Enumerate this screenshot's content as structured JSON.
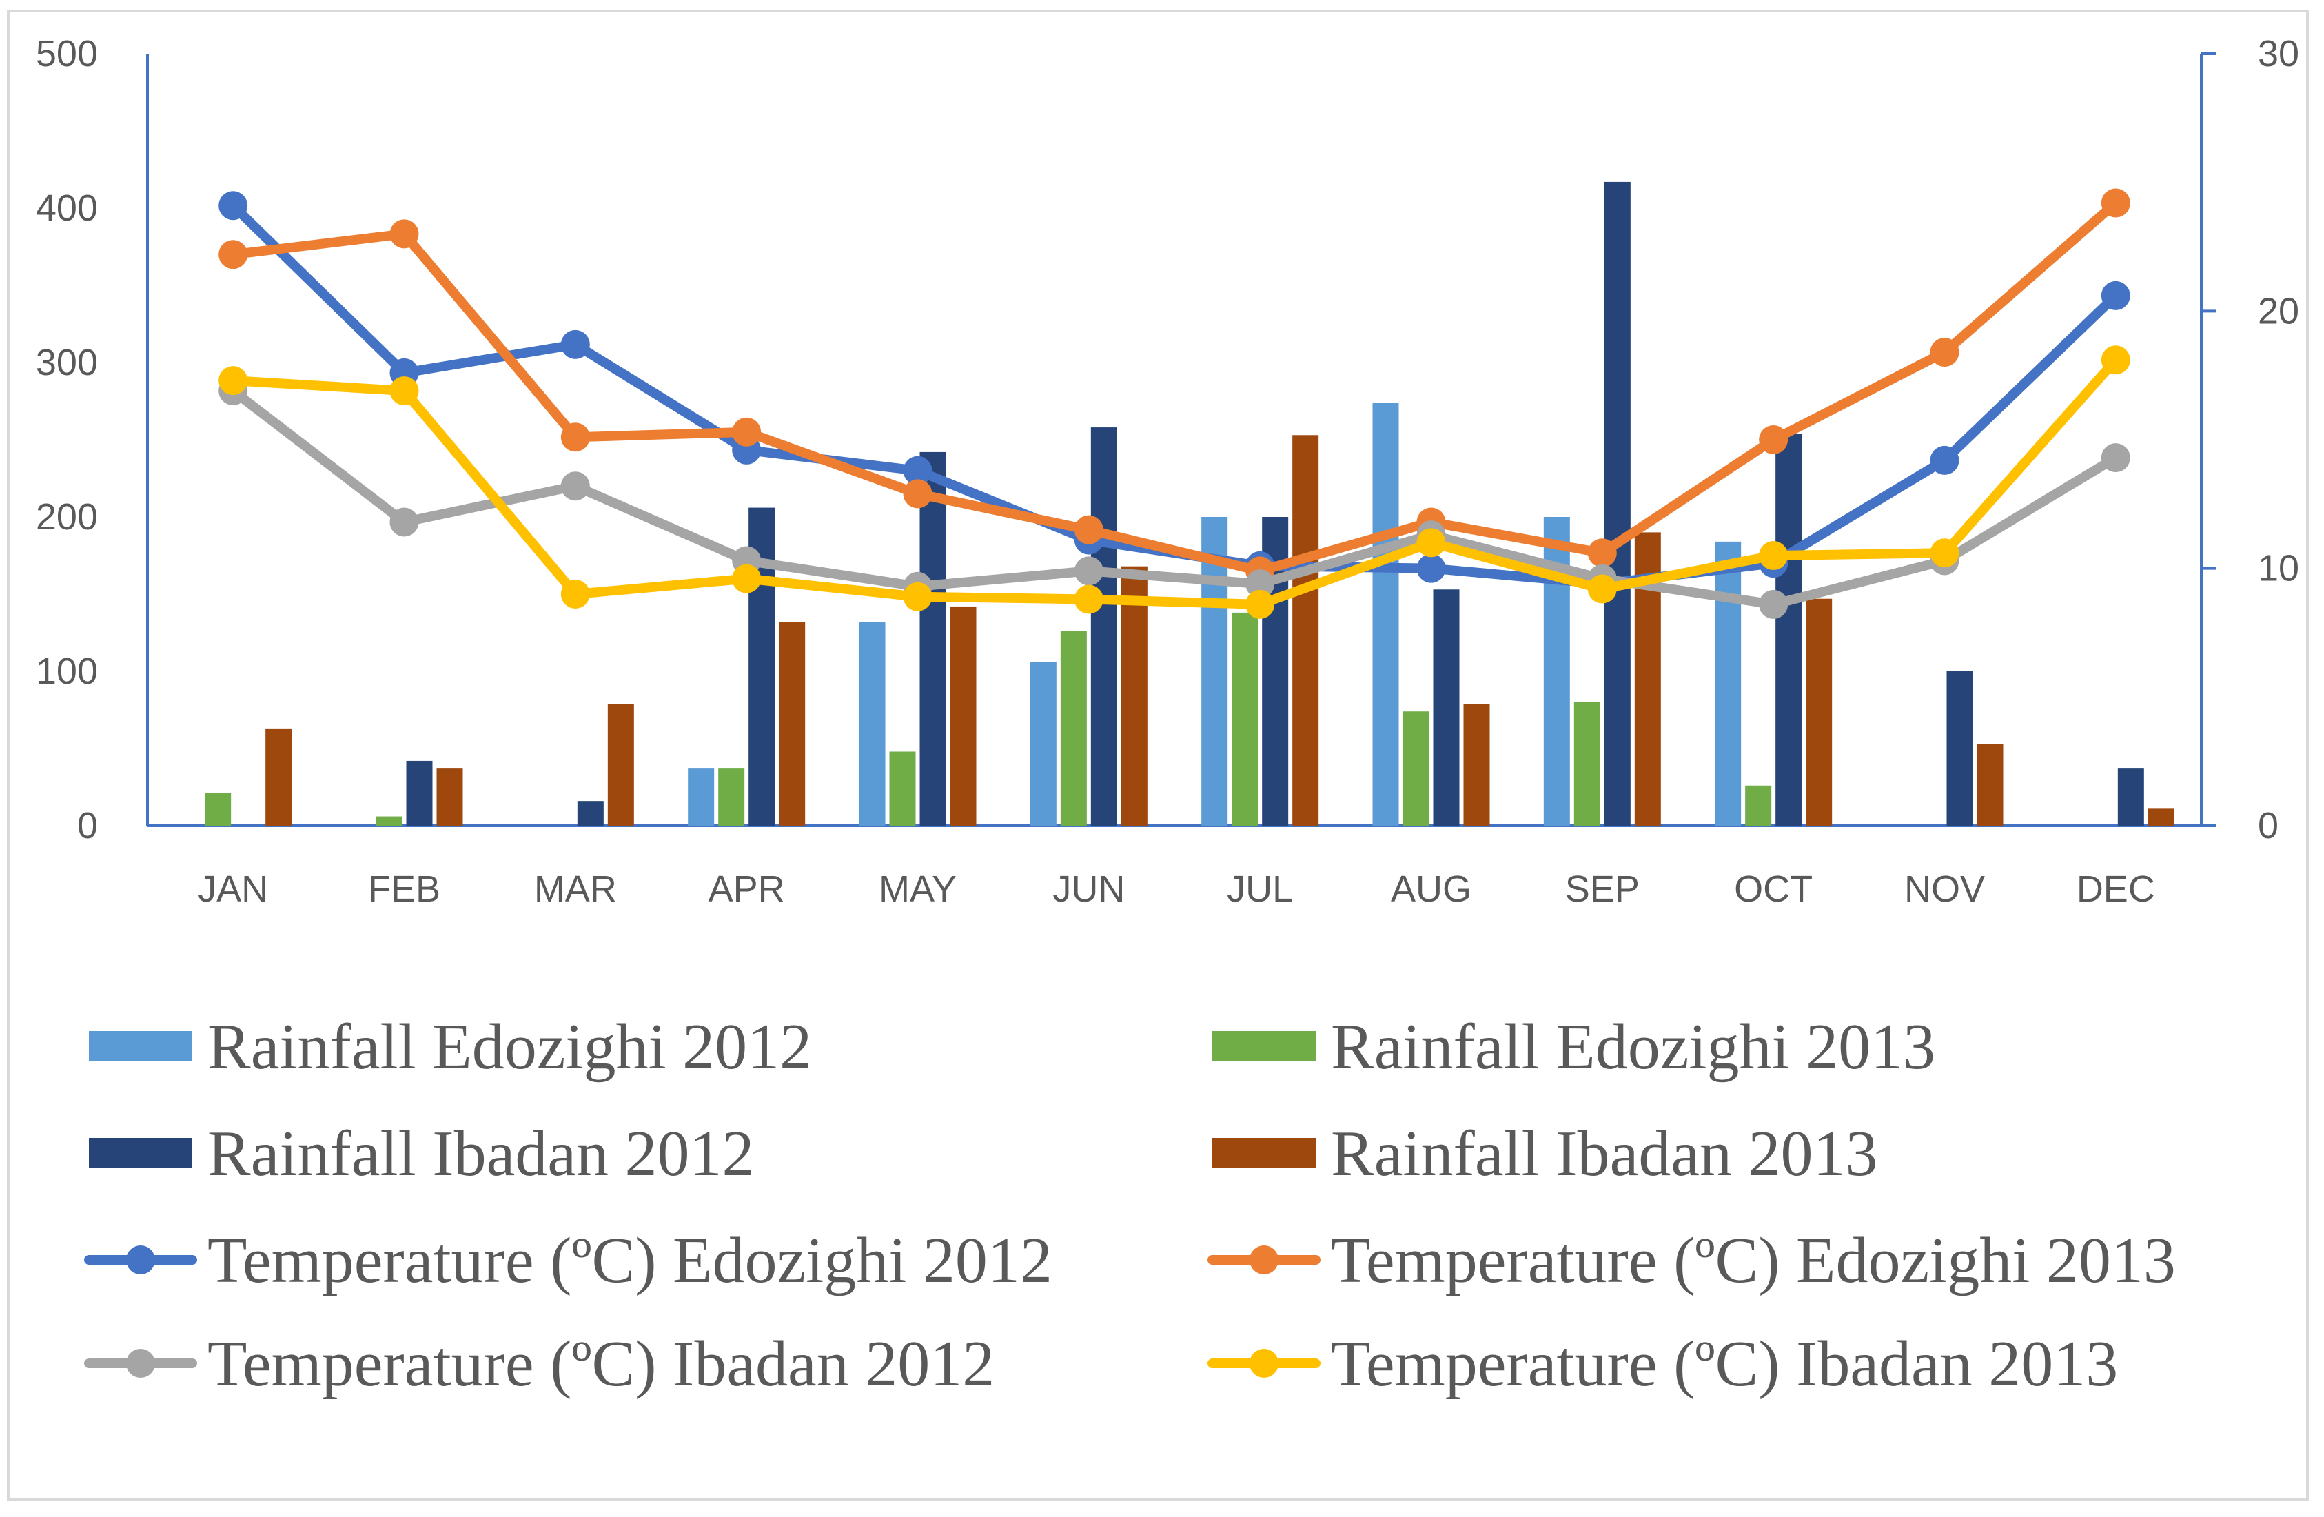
{
  "chart_data": {
    "type": "bar",
    "categories": [
      "JAN",
      "FEB",
      "MAR",
      "APR",
      "MAY",
      "JUN",
      "JUL",
      "AUG",
      "SEP",
      "OCT",
      "NOV",
      "DEC"
    ],
    "bar_series": [
      {
        "name": "Rainfall Edozighi 2012",
        "color": "#5b9bd5",
        "values": [
          0,
          0,
          0,
          37,
          132,
          106,
          200,
          274,
          200,
          184,
          0,
          0
        ]
      },
      {
        "name": "Rainfall Edozighi 2013",
        "color": "#70ad47",
        "values": [
          21,
          6,
          0,
          37,
          48,
          126,
          138,
          74,
          80,
          26,
          0,
          0
        ]
      },
      {
        "name": "Rainfall Ibadan 2012",
        "color": "#264478",
        "values": [
          0,
          42,
          16,
          206,
          242,
          258,
          200,
          153,
          417,
          254,
          100,
          37
        ]
      },
      {
        "name": "Rainfall Ibadan 2013",
        "color": "#9e480e",
        "values": [
          63,
          37,
          79,
          132,
          142,
          168,
          253,
          79,
          190,
          147,
          53,
          11
        ]
      }
    ],
    "line_series": [
      {
        "name": "Temperature (ºC) Edozighi 2012",
        "color": "#4472c4",
        "values": [
          24.1,
          17.6,
          18.7,
          14.6,
          13.8,
          11.1,
          10.1,
          10.0,
          9.4,
          10.2,
          14.2,
          20.6
        ]
      },
      {
        "name": "Temperature (ºC) Edozighi 2013",
        "color": "#ed7d31",
        "values": [
          22.2,
          23.0,
          15.1,
          15.3,
          12.9,
          11.5,
          9.9,
          11.8,
          10.6,
          15.0,
          18.4,
          24.2
        ]
      },
      {
        "name": "Temperature (ºC) Ibadan 2012",
        "color": "#a5a5a5",
        "values": [
          16.9,
          11.8,
          13.2,
          10.3,
          9.3,
          9.9,
          9.4,
          11.3,
          9.6,
          8.6,
          10.3,
          14.3
        ]
      },
      {
        "name": "Temperature (ºC) Ibadan 2013",
        "color": "#ffc000",
        "values": [
          17.3,
          16.9,
          9.0,
          9.6,
          8.9,
          8.8,
          8.6,
          11.0,
          9.2,
          10.5,
          10.6,
          18.1
        ]
      }
    ],
    "y_left": {
      "ylim": [
        0,
        500
      ],
      "ticks": [
        "0",
        "100",
        "200",
        "300",
        "400",
        "500"
      ]
    },
    "y_right": {
      "ylim": [
        0,
        30
      ],
      "ticks": [
        "0",
        "10",
        "20",
        "30"
      ]
    },
    "grid": false,
    "legend_position": "bottom"
  }
}
